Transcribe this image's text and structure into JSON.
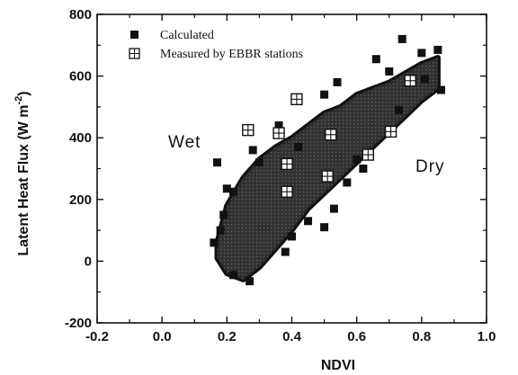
{
  "chart_data": {
    "type": "scatter",
    "xlabel": "NDVI",
    "ylabel": "Latent Heat Flux (W m",
    "ylabel_sup": "-2",
    "ylabel_close": ")",
    "xlim": [
      -0.2,
      1.0
    ],
    "ylim": [
      -200,
      800
    ],
    "x_ticks": [
      "-0.2",
      "0.0",
      "0.2",
      "0.4",
      "0.6",
      "0.8",
      "1.0"
    ],
    "y_ticks": [
      "-200",
      "0",
      "200",
      "400",
      "600",
      "800"
    ],
    "grid": false,
    "legend_position": "top-left",
    "annotations": [
      {
        "text": "Wet",
        "x": 0.05,
        "y": 375
      },
      {
        "text": "Dry",
        "x": 0.71,
        "y": 300
      }
    ],
    "series": [
      {
        "name": "Calculated",
        "marker": "filled-square",
        "color": "#111111",
        "band": {
          "description_free": true,
          "upper": [
            [
              0.17,
              60
            ],
            [
              0.2,
              180
            ],
            [
              0.25,
              270
            ],
            [
              0.3,
              330
            ],
            [
              0.35,
              370
            ],
            [
              0.4,
              400
            ],
            [
              0.45,
              440
            ],
            [
              0.5,
              480
            ],
            [
              0.55,
              500
            ],
            [
              0.6,
              540
            ],
            [
              0.65,
              560
            ],
            [
              0.7,
              580
            ],
            [
              0.75,
              610
            ],
            [
              0.8,
              640
            ],
            [
              0.85,
              660
            ]
          ],
          "lower": [
            [
              0.17,
              10
            ],
            [
              0.2,
              -40
            ],
            [
              0.25,
              -60
            ],
            [
              0.3,
              -20
            ],
            [
              0.35,
              40
            ],
            [
              0.4,
              100
            ],
            [
              0.45,
              170
            ],
            [
              0.5,
              220
            ],
            [
              0.55,
              270
            ],
            [
              0.6,
              320
            ],
            [
              0.65,
              370
            ],
            [
              0.7,
              420
            ],
            [
              0.75,
              470
            ],
            [
              0.8,
              520
            ],
            [
              0.85,
              560
            ]
          ]
        },
        "values": [
          [
            0.17,
            320
          ],
          [
            0.2,
            235
          ],
          [
            0.19,
            150
          ],
          [
            0.28,
            360
          ],
          [
            0.3,
            320
          ],
          [
            0.22,
            225
          ],
          [
            0.74,
            720
          ],
          [
            0.85,
            685
          ],
          [
            0.8,
            675
          ],
          [
            0.66,
            655
          ],
          [
            0.7,
            615
          ],
          [
            0.86,
            555
          ],
          [
            0.54,
            580
          ],
          [
            0.5,
            540
          ],
          [
            0.36,
            440
          ],
          [
            0.42,
            370
          ],
          [
            0.5,
            110
          ],
          [
            0.45,
            130
          ],
          [
            0.4,
            80
          ],
          [
            0.38,
            30
          ],
          [
            0.27,
            -65
          ],
          [
            0.22,
            -45
          ],
          [
            0.16,
            60
          ],
          [
            0.18,
            100
          ],
          [
            0.6,
            330
          ],
          [
            0.62,
            300
          ],
          [
            0.57,
            255
          ],
          [
            0.53,
            170
          ],
          [
            0.81,
            590
          ],
          [
            0.73,
            490
          ]
        ]
      },
      {
        "name": "Measured by EBBR stations",
        "marker": "crossed-square",
        "color": "#111111",
        "values": [
          [
            0.265,
            425
          ],
          [
            0.36,
            415
          ],
          [
            0.415,
            525
          ],
          [
            0.385,
            315
          ],
          [
            0.385,
            225
          ],
          [
            0.52,
            410
          ],
          [
            0.51,
            275
          ],
          [
            0.635,
            345
          ],
          [
            0.705,
            420
          ],
          [
            0.765,
            585
          ]
        ]
      }
    ]
  }
}
